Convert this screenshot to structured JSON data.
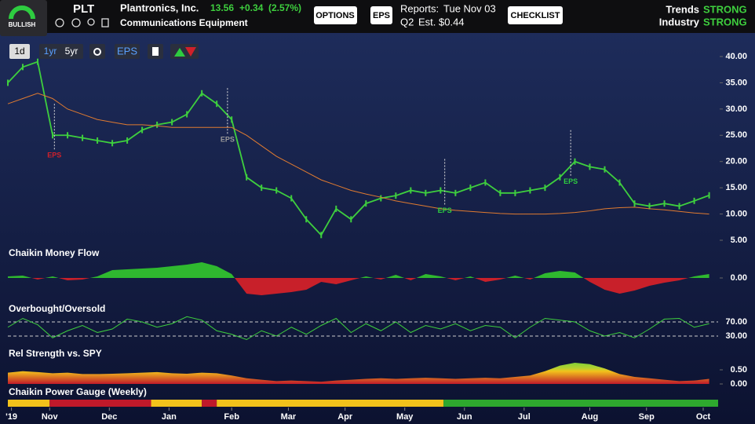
{
  "header": {
    "gauge_label": "BULLISH",
    "ticker": "PLT",
    "company": "Plantronics, Inc.",
    "price": "13.56",
    "change": "+0.34",
    "change_pct": "(2.57%)",
    "industry": "Communications Equipment",
    "options_button": "OPTIONS",
    "eps_button": "EPS",
    "reports_label": "Reports:",
    "reports_date": "Tue Nov 03",
    "quarter": "Q2",
    "est_label": "Est.",
    "est_value": "$0.44",
    "checklist_button": "CHECKLIST",
    "trends_label": "Trends",
    "trends_value": "STRONG",
    "industry_label": "Industry",
    "industry_value": "STRONG"
  },
  "toolbar": {
    "period_1d": "1d",
    "period_1yr": "1yr",
    "period_5yr": "5yr",
    "eps_toggle": "EPS"
  },
  "chart_data": [
    {
      "type": "line",
      "xlim": [
        0.3,
        12.2
      ],
      "ylim": [
        5,
        40
      ],
      "xticks": [
        {
          "value": 0.36,
          "label": "'19"
        },
        {
          "value": 1,
          "label": "Nov"
        },
        {
          "value": 2,
          "label": "Dec"
        },
        {
          "value": 3,
          "label": "Jan"
        },
        {
          "value": 4.05,
          "label": "Feb"
        },
        {
          "value": 5,
          "label": "Mar"
        },
        {
          "value": 5.95,
          "label": "Apr"
        },
        {
          "value": 6.95,
          "label": "May"
        },
        {
          "value": 7.95,
          "label": "Jun"
        },
        {
          "value": 8.95,
          "label": "Jul"
        },
        {
          "value": 10.05,
          "label": "Aug"
        },
        {
          "value": 11,
          "label": "Sep"
        },
        {
          "value": 11.95,
          "label": "Oct"
        }
      ],
      "yticks": [
        {
          "value": 40,
          "label": "40.00"
        },
        {
          "value": 35,
          "label": "35.00"
        },
        {
          "value": 30,
          "label": "30.00"
        },
        {
          "value": 25,
          "label": "25.00"
        },
        {
          "value": 20,
          "label": "20.00"
        },
        {
          "value": 15,
          "label": "15.00"
        },
        {
          "value": 10,
          "label": "10.00"
        },
        {
          "value": 5,
          "label": "5.00"
        }
      ],
      "x": [
        0.3,
        0.55,
        0.8,
        1.05,
        1.3,
        1.55,
        1.8,
        2.05,
        2.3,
        2.55,
        2.8,
        3.05,
        3.3,
        3.55,
        3.8,
        4.05,
        4.3,
        4.55,
        4.8,
        5.05,
        5.3,
        5.55,
        5.8,
        6.05,
        6.3,
        6.55,
        6.8,
        7.05,
        7.3,
        7.55,
        7.8,
        8.05,
        8.3,
        8.55,
        8.8,
        9.05,
        9.3,
        9.55,
        9.8,
        10.05,
        10.3,
        10.55,
        10.8,
        11.05,
        11.3,
        11.55,
        11.8,
        12.05
      ],
      "series": [
        {
          "color": "#3ecf3e",
          "values": [
            35,
            38,
            39,
            25,
            25,
            24.5,
            24,
            23.5,
            24,
            26,
            27,
            27.5,
            29,
            33,
            31,
            28,
            17,
            15,
            14.5,
            13,
            9,
            6,
            11,
            9,
            12,
            13,
            13.5,
            14.5,
            14,
            14.5,
            14,
            15,
            16,
            14,
            14,
            14.5,
            15,
            17,
            20,
            19,
            18.5,
            16,
            12,
            11.5,
            12,
            11.5,
            12.5,
            13.56
          ]
        },
        {
          "color": "#e07b30",
          "values": [
            31,
            32,
            33,
            32,
            30,
            29,
            28,
            27.5,
            27,
            27,
            26.8,
            26.5,
            26.5,
            26.5,
            26.5,
            26.5,
            25,
            23,
            21,
            19.5,
            18,
            16.5,
            15.5,
            14.5,
            13.8,
            13.2,
            12.5,
            12,
            11.5,
            11,
            10.7,
            10.5,
            10.3,
            10.1,
            10,
            10,
            10,
            10.1,
            10.3,
            10.6,
            11,
            11.2,
            11.3,
            11,
            10.8,
            10.5,
            10.2,
            10
          ]
        }
      ],
      "annotations": [
        {
          "text": "EPS",
          "x": 1.08,
          "color": "#d0202a"
        },
        {
          "text": "EPS",
          "x": 3.98,
          "color": "#9a9a9a"
        },
        {
          "text": "EPS",
          "x": 7.62,
          "color": "#2ecc40"
        },
        {
          "text": "EPS",
          "x": 9.73,
          "color": "#2ecc40"
        }
      ]
    },
    {
      "type": "area",
      "title": "Chaikin Money Flow",
      "ylim": [
        -0.3,
        0.3
      ],
      "yticks": [
        {
          "value": 0,
          "label": "0.00"
        }
      ],
      "pos_color": "#2fb82f",
      "neg_color": "#c8202a",
      "values": [
        0.02,
        0.03,
        -0.02,
        0.02,
        -0.03,
        -0.02,
        0.02,
        0.1,
        0.11,
        0.12,
        0.13,
        0.15,
        0.17,
        0.2,
        0.15,
        0.05,
        -0.2,
        -0.22,
        -0.2,
        -0.18,
        -0.15,
        -0.05,
        -0.08,
        -0.03,
        0.02,
        -0.02,
        0.04,
        -0.03,
        0.05,
        0.02,
        -0.03,
        0.02,
        -0.05,
        -0.02,
        0.03,
        -0.02,
        0.06,
        0.09,
        0.07,
        -0.05,
        -0.15,
        -0.2,
        -0.16,
        -0.1,
        -0.06,
        -0.03,
        0.02,
        0.05
      ]
    },
    {
      "type": "line",
      "title": "Overbought/Oversold",
      "ylim": [
        0,
        100
      ],
      "yticks": [
        {
          "value": 70,
          "label": "70.00"
        },
        {
          "value": 30,
          "label": "30.00"
        }
      ],
      "color": "#3ecf3e",
      "values": [
        55,
        80,
        62,
        25,
        45,
        60,
        40,
        50,
        78,
        70,
        55,
        65,
        85,
        75,
        45,
        35,
        20,
        45,
        30,
        55,
        35,
        60,
        80,
        40,
        65,
        45,
        70,
        40,
        60,
        50,
        65,
        45,
        60,
        55,
        25,
        55,
        80,
        75,
        70,
        45,
        30,
        40,
        25,
        50,
        78,
        80,
        55,
        65
      ]
    },
    {
      "type": "area",
      "title": "Rel Strength vs. SPY",
      "ylim": [
        0,
        1
      ],
      "yticks": [
        {
          "value": 0.5,
          "label": "0.50"
        },
        {
          "value": 0,
          "label": "0.00"
        }
      ],
      "values": [
        0.4,
        0.45,
        0.42,
        0.38,
        0.4,
        0.35,
        0.35,
        0.36,
        0.38,
        0.4,
        0.42,
        0.38,
        0.36,
        0.4,
        0.38,
        0.3,
        0.2,
        0.15,
        0.1,
        0.12,
        0.1,
        0.08,
        0.12,
        0.15,
        0.18,
        0.2,
        0.18,
        0.2,
        0.22,
        0.2,
        0.18,
        0.2,
        0.22,
        0.2,
        0.25,
        0.3,
        0.45,
        0.65,
        0.75,
        0.7,
        0.55,
        0.35,
        0.25,
        0.2,
        0.15,
        0.1,
        0.12,
        0.18
      ]
    },
    {
      "type": "segments",
      "title": "Chaikin Power Gauge (Weekly)",
      "segments": [
        {
          "start": 0.3,
          "end": 1,
          "color": "#f2c21b"
        },
        {
          "start": 1,
          "end": 2.7,
          "color": "#c0192a"
        },
        {
          "start": 2.7,
          "end": 3.55,
          "color": "#f2c21b"
        },
        {
          "start": 3.55,
          "end": 3.8,
          "color": "#c0192a"
        },
        {
          "start": 3.8,
          "end": 7.6,
          "color": "#f2c21b"
        },
        {
          "start": 7.6,
          "end": 12.2,
          "color": "#2ea82e"
        }
      ]
    }
  ]
}
